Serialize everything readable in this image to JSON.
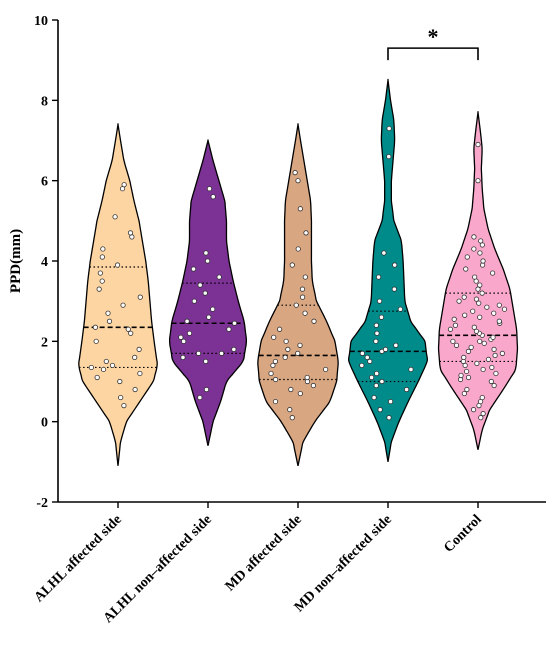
{
  "chart_data": {
    "type": "violin",
    "title": "",
    "xlabel": "",
    "ylabel": "PPD(mm)",
    "ylim": [
      -2,
      10
    ],
    "yticks": [
      -2,
      0,
      2,
      4,
      6,
      8,
      10
    ],
    "grid": false,
    "categories": [
      "ALHL affected side",
      "ALHL non–affected side",
      "MD affected side",
      "MD non–affected side",
      "Control"
    ],
    "series": [
      {
        "color": "#FDD5A2",
        "min": -1.1,
        "max": 7.4,
        "median": 2.35,
        "q1": 1.35,
        "q3": 3.85,
        "profile": [
          [
            -1.1,
            0.0
          ],
          [
            -0.5,
            0.03
          ],
          [
            0.0,
            0.1
          ],
          [
            0.5,
            0.26
          ],
          [
            1.0,
            0.42
          ],
          [
            1.4,
            0.47
          ],
          [
            2.0,
            0.43
          ],
          [
            2.5,
            0.4
          ],
          [
            3.0,
            0.38
          ],
          [
            3.5,
            0.36
          ],
          [
            4.0,
            0.33
          ],
          [
            4.5,
            0.29
          ],
          [
            5.0,
            0.25
          ],
          [
            5.5,
            0.19
          ],
          [
            6.0,
            0.14
          ],
          [
            6.5,
            0.07
          ],
          [
            7.0,
            0.03
          ],
          [
            7.4,
            0.0
          ]
        ],
        "points": [
          0.4,
          0.6,
          0.8,
          1.0,
          1.1,
          1.2,
          1.3,
          1.35,
          1.4,
          1.5,
          1.6,
          1.8,
          2.0,
          2.2,
          2.3,
          2.35,
          2.5,
          2.7,
          2.9,
          3.1,
          3.3,
          3.5,
          3.7,
          3.9,
          4.1,
          4.3,
          4.6,
          4.7,
          5.1,
          5.8,
          5.9
        ]
      },
      {
        "color": "#7B3294",
        "min": -0.6,
        "max": 7.0,
        "median": 2.45,
        "q1": 1.7,
        "q3": 3.45,
        "profile": [
          [
            -0.6,
            0.0
          ],
          [
            0.0,
            0.06
          ],
          [
            0.5,
            0.15
          ],
          [
            1.0,
            0.22
          ],
          [
            1.5,
            0.42
          ],
          [
            2.0,
            0.46
          ],
          [
            2.5,
            0.43
          ],
          [
            3.0,
            0.36
          ],
          [
            3.5,
            0.3
          ],
          [
            4.0,
            0.25
          ],
          [
            4.5,
            0.22
          ],
          [
            5.0,
            0.22
          ],
          [
            5.5,
            0.2
          ],
          [
            6.0,
            0.13
          ],
          [
            6.5,
            0.06
          ],
          [
            7.0,
            0.0
          ]
        ],
        "points": [
          0.6,
          0.8,
          1.5,
          1.6,
          1.7,
          1.7,
          1.8,
          2.0,
          2.1,
          2.2,
          2.3,
          2.45,
          2.5,
          2.6,
          2.8,
          3.0,
          3.2,
          3.4,
          3.6,
          3.8,
          4.0,
          4.2,
          5.6,
          5.8
        ]
      },
      {
        "color": "#D9A682",
        "min": -1.1,
        "max": 7.4,
        "median": 1.65,
        "q1": 1.05,
        "q3": 2.9,
        "profile": [
          [
            -1.1,
            0.0
          ],
          [
            -0.5,
            0.06
          ],
          [
            0.0,
            0.2
          ],
          [
            0.5,
            0.38
          ],
          [
            1.0,
            0.46
          ],
          [
            1.5,
            0.48
          ],
          [
            2.0,
            0.44
          ],
          [
            2.5,
            0.34
          ],
          [
            3.0,
            0.22
          ],
          [
            3.5,
            0.17
          ],
          [
            4.0,
            0.16
          ],
          [
            4.5,
            0.16
          ],
          [
            5.0,
            0.16
          ],
          [
            5.5,
            0.15
          ],
          [
            6.0,
            0.11
          ],
          [
            6.5,
            0.07
          ],
          [
            7.0,
            0.03
          ],
          [
            7.4,
            0.0
          ]
        ],
        "points": [
          0.1,
          0.3,
          0.5,
          0.7,
          0.8,
          0.9,
          1.0,
          1.05,
          1.1,
          1.2,
          1.3,
          1.4,
          1.5,
          1.6,
          1.7,
          1.8,
          1.9,
          2.0,
          2.1,
          2.3,
          2.5,
          2.7,
          2.9,
          3.1,
          3.3,
          3.6,
          3.9,
          4.3,
          4.7,
          5.3,
          6.0,
          6.2
        ]
      },
      {
        "color": "#008B8B",
        "min": -1.0,
        "max": 8.5,
        "median": 1.75,
        "q1": 1.0,
        "q3": 2.75,
        "profile": [
          [
            -1.0,
            0.0
          ],
          [
            -0.5,
            0.04
          ],
          [
            0.0,
            0.13
          ],
          [
            0.5,
            0.24
          ],
          [
            1.0,
            0.36
          ],
          [
            1.5,
            0.47
          ],
          [
            2.0,
            0.44
          ],
          [
            2.5,
            0.27
          ],
          [
            3.0,
            0.2
          ],
          [
            3.5,
            0.19
          ],
          [
            4.0,
            0.18
          ],
          [
            4.5,
            0.16
          ],
          [
            5.0,
            0.07
          ],
          [
            5.5,
            0.04
          ],
          [
            6.0,
            0.04
          ],
          [
            6.5,
            0.06
          ],
          [
            7.0,
            0.08
          ],
          [
            7.5,
            0.07
          ],
          [
            8.0,
            0.03
          ],
          [
            8.5,
            0.0
          ]
        ],
        "points": [
          0.1,
          0.3,
          0.5,
          0.6,
          0.8,
          0.9,
          1.0,
          1.1,
          1.2,
          1.3,
          1.4,
          1.5,
          1.6,
          1.7,
          1.75,
          1.8,
          1.9,
          2.0,
          2.2,
          2.4,
          2.6,
          2.8,
          3.0,
          3.3,
          3.6,
          3.9,
          4.2,
          6.6,
          7.3
        ]
      },
      {
        "color": "#F9A8CC",
        "min": -0.7,
        "max": 7.7,
        "median": 2.15,
        "q1": 1.5,
        "q3": 3.2,
        "profile": [
          [
            -0.7,
            0.0
          ],
          [
            -0.2,
            0.05
          ],
          [
            0.3,
            0.14
          ],
          [
            0.8,
            0.3
          ],
          [
            1.3,
            0.45
          ],
          [
            1.8,
            0.47
          ],
          [
            2.3,
            0.46
          ],
          [
            2.8,
            0.42
          ],
          [
            3.3,
            0.38
          ],
          [
            3.8,
            0.3
          ],
          [
            4.3,
            0.2
          ],
          [
            4.8,
            0.12
          ],
          [
            5.3,
            0.07
          ],
          [
            5.8,
            0.05
          ],
          [
            6.3,
            0.04
          ],
          [
            6.8,
            0.05
          ],
          [
            7.2,
            0.03
          ],
          [
            7.7,
            0.0
          ]
        ],
        "points": [
          0.1,
          0.2,
          0.3,
          0.4,
          0.5,
          0.6,
          0.7,
          0.8,
          0.9,
          1.0,
          1.05,
          1.1,
          1.15,
          1.2,
          1.25,
          1.3,
          1.35,
          1.4,
          1.45,
          1.5,
          1.55,
          1.6,
          1.65,
          1.7,
          1.75,
          1.8,
          1.85,
          1.9,
          1.95,
          2.0,
          2.0,
          2.05,
          2.1,
          2.15,
          2.2,
          2.25,
          2.3,
          2.35,
          2.4,
          2.45,
          2.5,
          2.55,
          2.6,
          2.65,
          2.7,
          2.75,
          2.8,
          2.85,
          2.9,
          2.95,
          3.0,
          3.05,
          3.1,
          3.2,
          3.3,
          3.4,
          3.5,
          3.6,
          3.7,
          3.8,
          3.9,
          4.0,
          4.1,
          4.2,
          4.3,
          4.4,
          4.5,
          4.6,
          6.0,
          6.9
        ]
      }
    ],
    "annotations": [
      {
        "type": "significance",
        "from": "MD non–affected side",
        "to": "Control",
        "y": 9.3,
        "text": "*"
      }
    ]
  }
}
